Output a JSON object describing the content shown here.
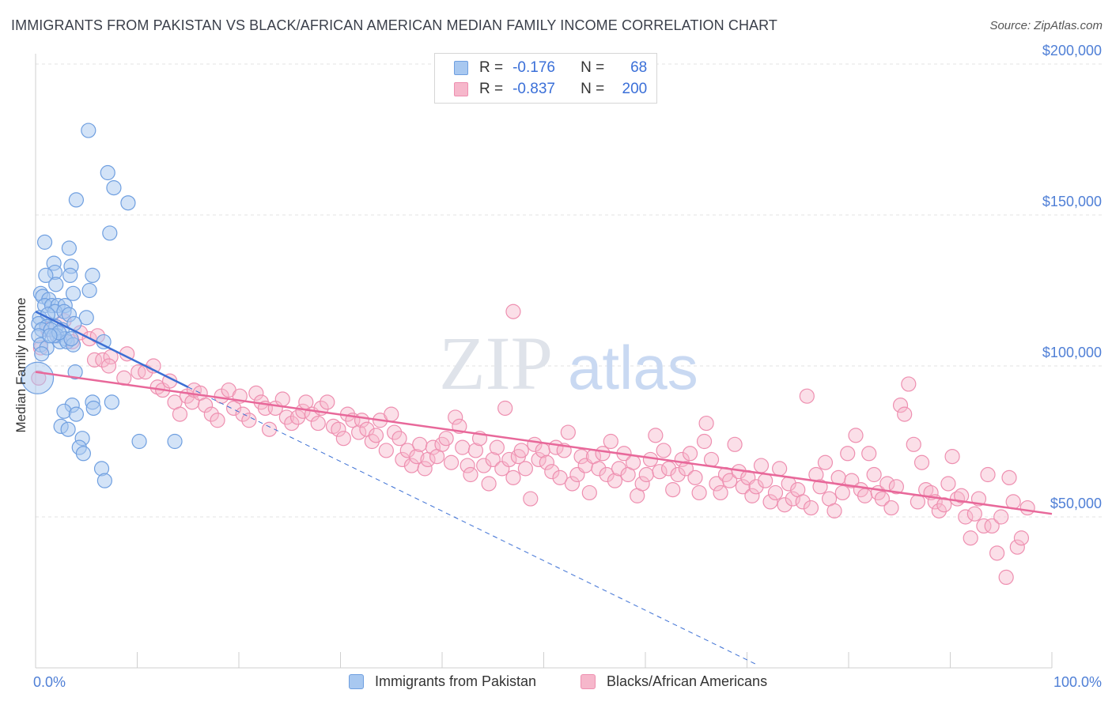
{
  "header": {
    "title": "IMMIGRANTS FROM PAKISTAN VS BLACK/AFRICAN AMERICAN MEDIAN FAMILY INCOME CORRELATION CHART",
    "source": "Source: ZipAtlas.com"
  },
  "watermark": {
    "zip": "ZIP",
    "atlas": "atlas"
  },
  "legend": {
    "rows": [
      {
        "r_label": "R =",
        "r_value": "-0.176",
        "n_label": "N =",
        "n_value": "68"
      },
      {
        "r_label": "R =",
        "r_value": "-0.837",
        "n_label": "N =",
        "n_value": "200"
      }
    ]
  },
  "colors": {
    "blue_fill": "#a8c8f0",
    "blue_stroke": "#6f9fe0",
    "blue_line": "#3b6fd4",
    "pink_fill": "#f6b7cb",
    "pink_stroke": "#ee8fb0",
    "pink_line": "#e8689a",
    "axis_text": "#4f7fd6"
  },
  "chart_data": {
    "type": "scatter",
    "title": "IMMIGRANTS FROM PAKISTAN VS BLACK/AFRICAN AMERICAN MEDIAN FAMILY INCOME CORRELATION CHART",
    "xlabel": "",
    "ylabel": "Median Family Income",
    "xlim": [
      0,
      100
    ],
    "ylim": [
      0,
      210000
    ],
    "x_tick_labels": [
      "0.0%",
      "100.0%"
    ],
    "y_ticks": [
      50000,
      100000,
      150000,
      200000
    ],
    "y_tick_labels": [
      "$50,000",
      "$100,000",
      "$150,000",
      "$200,000"
    ],
    "grid": true,
    "legend_position": "top-center",
    "series": [
      {
        "name": "Immigrants from Pakistan",
        "R": -0.176,
        "N": 68,
        "trend": {
          "solid": [
            [
              0,
              118000
            ],
            [
              15,
              93000
            ]
          ],
          "dashed": [
            [
              15,
              93000
            ],
            [
              71,
              1000
            ]
          ]
        },
        "points": [
          [
            5.2,
            178000
          ],
          [
            7.1,
            164000
          ],
          [
            7.7,
            159000
          ],
          [
            4.0,
            155000
          ],
          [
            9.1,
            154000
          ],
          [
            7.3,
            144000
          ],
          [
            0.9,
            141000
          ],
          [
            3.3,
            139000
          ],
          [
            1.8,
            134000
          ],
          [
            3.5,
            133000
          ],
          [
            1.9,
            131000
          ],
          [
            1.0,
            130000
          ],
          [
            3.4,
            130000
          ],
          [
            5.6,
            130000
          ],
          [
            2.0,
            127000
          ],
          [
            0.5,
            124000
          ],
          [
            3.7,
            124000
          ],
          [
            5.3,
            125000
          ],
          [
            0.7,
            123000
          ],
          [
            1.3,
            122000
          ],
          [
            0.9,
            120000
          ],
          [
            1.6,
            120000
          ],
          [
            2.2,
            120000
          ],
          [
            2.9,
            120000
          ],
          [
            1.9,
            118000
          ],
          [
            2.8,
            118000
          ],
          [
            0.4,
            116000
          ],
          [
            1.2,
            117000
          ],
          [
            3.3,
            117000
          ],
          [
            5.0,
            116000
          ],
          [
            0.3,
            114000
          ],
          [
            1.1,
            113000
          ],
          [
            2.0,
            113000
          ],
          [
            2.6,
            112000
          ],
          [
            3.8,
            114000
          ],
          [
            0.6,
            112000
          ],
          [
            1.5,
            112000
          ],
          [
            2.1,
            110000
          ],
          [
            2.9,
            109000
          ],
          [
            0.3,
            110000
          ],
          [
            2.4,
            108000
          ],
          [
            3.1,
            108000
          ],
          [
            3.7,
            107000
          ],
          [
            0.5,
            107000
          ],
          [
            6.7,
            108000
          ],
          [
            1.1,
            106000
          ],
          [
            0.6,
            104000
          ],
          [
            3.9,
            98000
          ],
          [
            0.2,
            96000
          ],
          [
            5.6,
            88000
          ],
          [
            7.5,
            88000
          ],
          [
            3.6,
            87000
          ],
          [
            2.8,
            85000
          ],
          [
            5.7,
            86000
          ],
          [
            4.0,
            84000
          ],
          [
            2.5,
            80000
          ],
          [
            3.2,
            79000
          ],
          [
            4.6,
            76000
          ],
          [
            10.2,
            75000
          ],
          [
            13.7,
            75000
          ],
          [
            4.3,
            73000
          ],
          [
            4.7,
            71000
          ],
          [
            6.5,
            66000
          ],
          [
            6.8,
            62000
          ],
          [
            3.5,
            109000
          ],
          [
            1.8,
            110000
          ],
          [
            2.3,
            111000
          ],
          [
            1.4,
            110000
          ]
        ]
      },
      {
        "name": "Blacks/African Americans",
        "R": -0.837,
        "N": 200,
        "trend": {
          "solid": [
            [
              0,
              98000
            ],
            [
              100,
              51000
            ]
          ]
        },
        "points": [
          [
            0.3,
            96000
          ],
          [
            0.5,
            106000
          ],
          [
            1.2,
            112000
          ],
          [
            2.1,
            110000
          ],
          [
            2.8,
            115000
          ],
          [
            3.6,
            108000
          ],
          [
            4.4,
            111000
          ],
          [
            5.3,
            109000
          ],
          [
            5.8,
            102000
          ],
          [
            6.1,
            110000
          ],
          [
            6.6,
            102000
          ],
          [
            7.4,
            103000
          ],
          [
            7.2,
            100000
          ],
          [
            8.7,
            96000
          ],
          [
            9.0,
            104000
          ],
          [
            10.1,
            98000
          ],
          [
            10.8,
            98000
          ],
          [
            11.6,
            100000
          ],
          [
            12.0,
            93000
          ],
          [
            12.5,
            92000
          ],
          [
            13.2,
            95000
          ],
          [
            13.7,
            88000
          ],
          [
            14.2,
            84000
          ],
          [
            14.9,
            90000
          ],
          [
            15.4,
            88000
          ],
          [
            15.6,
            92000
          ],
          [
            16.2,
            91000
          ],
          [
            16.7,
            87000
          ],
          [
            17.3,
            84000
          ],
          [
            17.9,
            82000
          ],
          [
            18.3,
            90000
          ],
          [
            19.0,
            92000
          ],
          [
            19.5,
            86000
          ],
          [
            20.1,
            90000
          ],
          [
            20.4,
            84000
          ],
          [
            21.0,
            82000
          ],
          [
            21.7,
            91000
          ],
          [
            22.2,
            88000
          ],
          [
            22.6,
            86000
          ],
          [
            23.0,
            79000
          ],
          [
            23.6,
            86000
          ],
          [
            24.3,
            89000
          ],
          [
            24.7,
            83000
          ],
          [
            25.2,
            81000
          ],
          [
            25.8,
            83000
          ],
          [
            26.3,
            85000
          ],
          [
            26.6,
            88000
          ],
          [
            27.2,
            84000
          ],
          [
            27.8,
            81000
          ],
          [
            28.1,
            86000
          ],
          [
            28.7,
            88000
          ],
          [
            29.3,
            80000
          ],
          [
            29.8,
            79000
          ],
          [
            30.3,
            76000
          ],
          [
            30.7,
            84000
          ],
          [
            31.2,
            82000
          ],
          [
            31.8,
            78000
          ],
          [
            32.1,
            82000
          ],
          [
            32.6,
            79000
          ],
          [
            33.1,
            75000
          ],
          [
            33.5,
            77000
          ],
          [
            33.9,
            82000
          ],
          [
            34.5,
            72000
          ],
          [
            35.0,
            84000
          ],
          [
            35.3,
            78000
          ],
          [
            35.8,
            76000
          ],
          [
            36.1,
            69000
          ],
          [
            36.6,
            72000
          ],
          [
            37.0,
            67000
          ],
          [
            37.5,
            70000
          ],
          [
            37.8,
            74000
          ],
          [
            38.3,
            66000
          ],
          [
            38.6,
            69000
          ],
          [
            39.1,
            73000
          ],
          [
            39.5,
            70000
          ],
          [
            40.0,
            74000
          ],
          [
            40.4,
            76000
          ],
          [
            40.9,
            68000
          ],
          [
            41.3,
            83000
          ],
          [
            41.7,
            80000
          ],
          [
            42.0,
            73000
          ],
          [
            42.5,
            67000
          ],
          [
            42.8,
            64000
          ],
          [
            43.3,
            72000
          ],
          [
            43.7,
            76000
          ],
          [
            44.1,
            67000
          ],
          [
            44.6,
            61000
          ],
          [
            45.0,
            69000
          ],
          [
            45.4,
            73000
          ],
          [
            45.9,
            66000
          ],
          [
            46.2,
            86000
          ],
          [
            46.6,
            69000
          ],
          [
            47.0,
            63000
          ],
          [
            47.5,
            70000
          ],
          [
            47.8,
            72000
          ],
          [
            48.2,
            66000
          ],
          [
            48.7,
            56000
          ],
          [
            49.1,
            74000
          ],
          [
            49.5,
            69000
          ],
          [
            49.9,
            72000
          ],
          [
            50.3,
            68000
          ],
          [
            50.8,
            65000
          ],
          [
            51.2,
            73000
          ],
          [
            51.6,
            63000
          ],
          [
            52.0,
            72000
          ],
          [
            52.4,
            78000
          ],
          [
            52.8,
            61000
          ],
          [
            53.3,
            64000
          ],
          [
            53.7,
            70000
          ],
          [
            54.1,
            67000
          ],
          [
            54.5,
            58000
          ],
          [
            54.9,
            70000
          ],
          [
            55.4,
            66000
          ],
          [
            55.8,
            71000
          ],
          [
            56.2,
            64000
          ],
          [
            56.6,
            75000
          ],
          [
            57.0,
            62000
          ],
          [
            57.4,
            66000
          ],
          [
            57.9,
            71000
          ],
          [
            58.3,
            64000
          ],
          [
            58.8,
            68000
          ],
          [
            59.2,
            57000
          ],
          [
            59.7,
            61000
          ],
          [
            60.1,
            64000
          ],
          [
            60.5,
            69000
          ],
          [
            61.0,
            77000
          ],
          [
            61.4,
            65000
          ],
          [
            61.8,
            72000
          ],
          [
            62.3,
            66000
          ],
          [
            62.7,
            59000
          ],
          [
            63.2,
            64000
          ],
          [
            63.6,
            69000
          ],
          [
            64.0,
            66000
          ],
          [
            64.4,
            71000
          ],
          [
            64.9,
            63000
          ],
          [
            65.3,
            58000
          ],
          [
            65.8,
            75000
          ],
          [
            66.0,
            81000
          ],
          [
            66.5,
            69000
          ],
          [
            67.0,
            61000
          ],
          [
            67.4,
            58000
          ],
          [
            67.9,
            64000
          ],
          [
            68.3,
            62000
          ],
          [
            68.8,
            74000
          ],
          [
            69.2,
            65000
          ],
          [
            69.6,
            60000
          ],
          [
            70.1,
            63000
          ],
          [
            70.5,
            57000
          ],
          [
            70.9,
            60000
          ],
          [
            71.4,
            67000
          ],
          [
            71.8,
            62000
          ],
          [
            72.3,
            55000
          ],
          [
            72.8,
            58000
          ],
          [
            73.2,
            66000
          ],
          [
            73.7,
            54000
          ],
          [
            74.1,
            61000
          ],
          [
            74.5,
            56000
          ],
          [
            75.0,
            59000
          ],
          [
            75.5,
            55000
          ],
          [
            75.9,
            90000
          ],
          [
            76.3,
            53000
          ],
          [
            76.8,
            64000
          ],
          [
            77.2,
            60000
          ],
          [
            77.7,
            68000
          ],
          [
            78.1,
            56000
          ],
          [
            78.6,
            52000
          ],
          [
            79.0,
            63000
          ],
          [
            79.4,
            58000
          ],
          [
            79.9,
            71000
          ],
          [
            80.3,
            62000
          ],
          [
            80.7,
            77000
          ],
          [
            81.2,
            59000
          ],
          [
            81.6,
            57000
          ],
          [
            82.0,
            71000
          ],
          [
            82.5,
            64000
          ],
          [
            82.9,
            58000
          ],
          [
            83.3,
            56000
          ],
          [
            83.8,
            61000
          ],
          [
            84.2,
            53000
          ],
          [
            84.7,
            60000
          ],
          [
            85.1,
            87000
          ],
          [
            85.5,
            84000
          ],
          [
            85.9,
            94000
          ],
          [
            86.4,
            74000
          ],
          [
            86.8,
            55000
          ],
          [
            87.2,
            68000
          ],
          [
            87.6,
            59000
          ],
          [
            88.1,
            58000
          ],
          [
            88.5,
            55000
          ],
          [
            88.9,
            52000
          ],
          [
            89.4,
            54000
          ],
          [
            89.8,
            61000
          ],
          [
            90.2,
            70000
          ],
          [
            90.7,
            56000
          ],
          [
            91.1,
            57000
          ],
          [
            91.5,
            50000
          ],
          [
            92.0,
            43000
          ],
          [
            92.4,
            51000
          ],
          [
            92.8,
            56000
          ],
          [
            93.3,
            47000
          ],
          [
            93.7,
            64000
          ],
          [
            94.1,
            47000
          ],
          [
            94.6,
            38000
          ],
          [
            95.0,
            50000
          ],
          [
            95.5,
            30000
          ],
          [
            95.8,
            63000
          ],
          [
            96.2,
            55000
          ],
          [
            96.6,
            40000
          ],
          [
            97.0,
            43000
          ],
          [
            97.6,
            53000
          ],
          [
            47.0,
            118000
          ]
        ]
      }
    ]
  },
  "bottom_legend": {
    "items": [
      {
        "label": "Immigrants from Pakistan"
      },
      {
        "label": "Blacks/African Americans"
      }
    ]
  }
}
